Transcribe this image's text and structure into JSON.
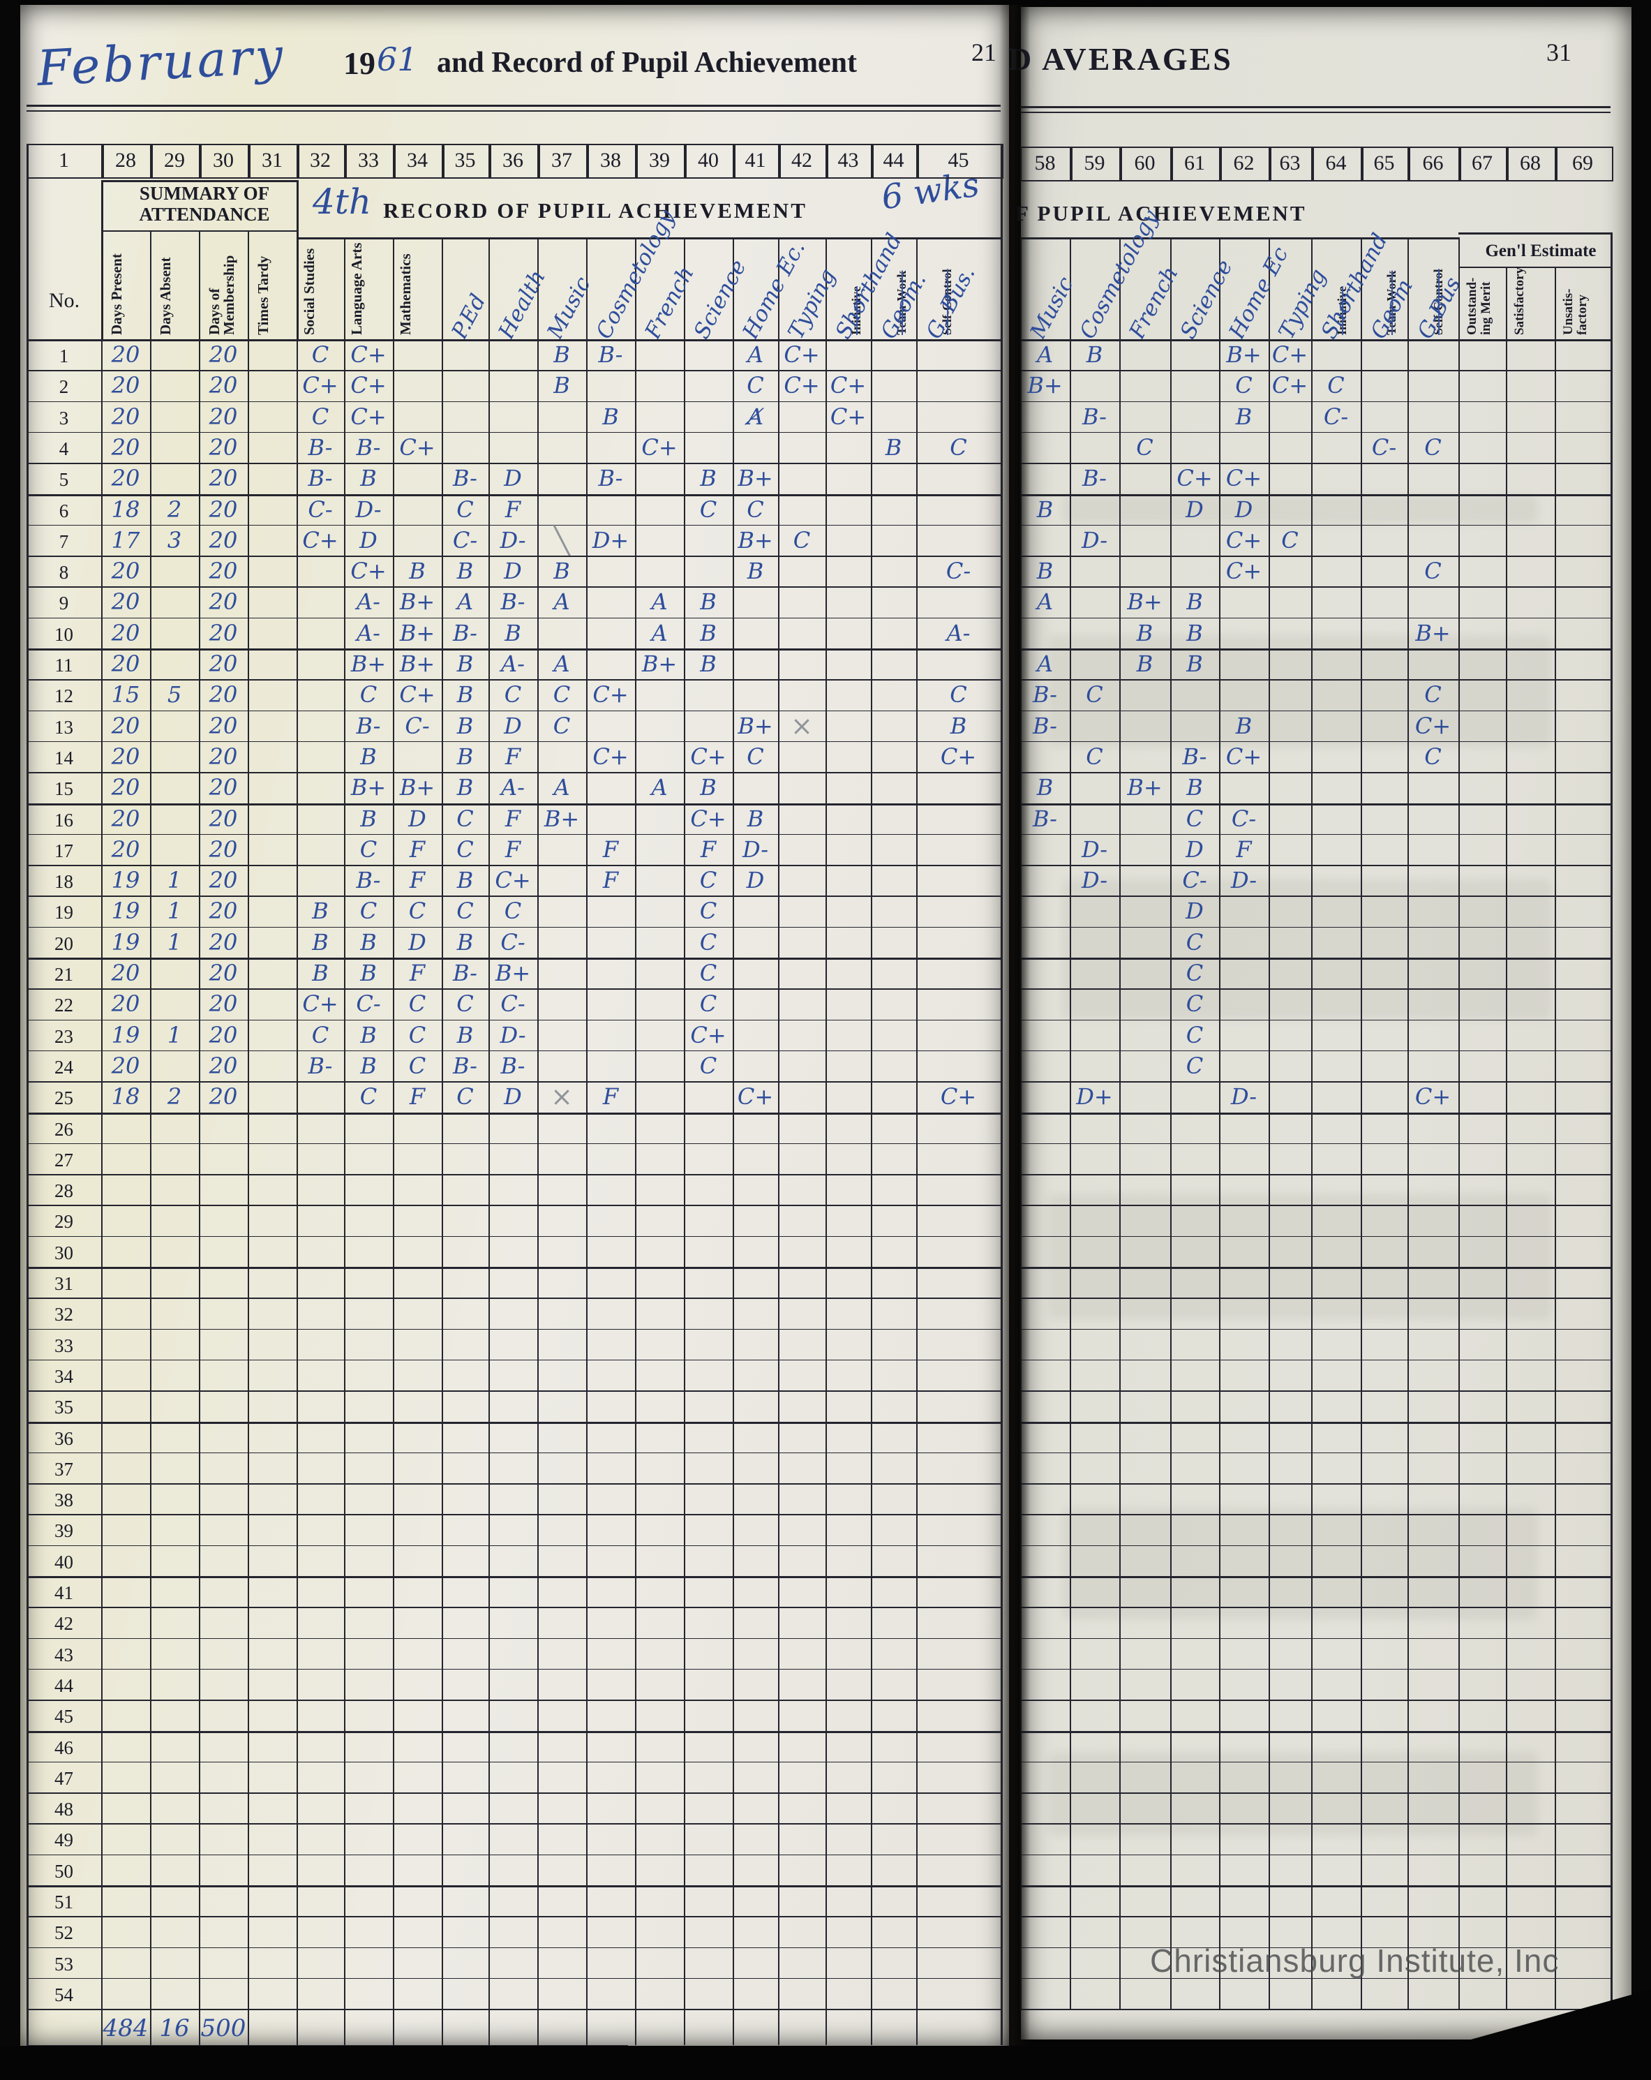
{
  "page_left": {
    "page_number": "21",
    "month_written": "February",
    "year_printed": "19",
    "year_written": "61",
    "title": "and Record of Pupil Achievement",
    "col_numbers": [
      "1",
      "28",
      "29",
      "30",
      "31",
      "32",
      "33",
      "34",
      "35",
      "36",
      "37",
      "38",
      "39",
      "40",
      "41",
      "42",
      "43",
      "44",
      "45"
    ],
    "no_label": "No.",
    "attendance_header": "SUMMARY OF ATTENDANCE",
    "attendance_cols": [
      "Days Present",
      "Days Absent",
      "Days of Membership",
      "Times Tardy"
    ],
    "achievement_header": "RECORD OF PUPIL ACHIEVEMENT",
    "term_annotation": "4th",
    "weeks_annotation": "6 wks",
    "subjects": [
      {
        "label": "Social Studies",
        "style": "printed"
      },
      {
        "label": "Language Arts",
        "style": "printed"
      },
      {
        "label": "Mathematics",
        "style": "printed"
      },
      {
        "label": "P.Ed",
        "style": "written"
      },
      {
        "label": "Health",
        "style": "written"
      },
      {
        "label": "Music",
        "style": "written"
      },
      {
        "label": "Cosmetology",
        "style": "written"
      },
      {
        "label": "French",
        "style": "written"
      },
      {
        "label": "Science",
        "style": "written"
      },
      {
        "label": "Home Ec.",
        "style": "written"
      },
      {
        "label": "Typing",
        "style": "written"
      },
      {
        "label": "Shorthand",
        "style": "written",
        "replaces": "Initiative"
      },
      {
        "label": "Geom.",
        "style": "written",
        "replaces": "Team-Work"
      },
      {
        "label": "G. Bus.",
        "style": "written",
        "replaces": "Self-Control"
      }
    ],
    "totals": {
      "present": "484",
      "absent": "16",
      "membership": "500"
    }
  },
  "page_right": {
    "page_number": "31",
    "title_partial": "D AVERAGES",
    "col_numbers": [
      "58",
      "59",
      "60",
      "61",
      "62",
      "63",
      "64",
      "65",
      "66",
      "67",
      "68",
      "69"
    ],
    "achievement_header_partial": "F PUPIL ACHIEVEMENT",
    "subjects": [
      {
        "label": "Music",
        "style": "written"
      },
      {
        "label": "Cosmetology",
        "style": "written"
      },
      {
        "label": "French",
        "style": "written"
      },
      {
        "label": "Science",
        "style": "written"
      },
      {
        "label": "Home Ec",
        "style": "written"
      },
      {
        "label": "Typing",
        "style": "written"
      },
      {
        "label": "Shorthand",
        "style": "written",
        "replaces": "Initiative"
      },
      {
        "label": "Geom",
        "style": "written",
        "replaces": "Team-Work"
      },
      {
        "label": "G-Bus",
        "style": "written",
        "replaces": "Self-Control"
      }
    ],
    "general_estimate": {
      "header": "Gen'l Estimate",
      "cols": [
        "Outstand- ing Merit",
        "Satisfactory",
        "Unsatis- factory"
      ]
    }
  },
  "watermark": "Christiansburg Institute, Inc",
  "row_count": 54,
  "rows": [
    {
      "no": "1",
      "att": [
        "20",
        "",
        "20",
        ""
      ],
      "left": [
        "C",
        "C+",
        "",
        "",
        "",
        "B",
        "B-",
        "",
        "",
        "A",
        "C+",
        "",
        "",
        ""
      ],
      "right": [
        "A",
        "B",
        "",
        "",
        "B+",
        "C+",
        "",
        "",
        "",
        "",
        "",
        ""
      ]
    },
    {
      "no": "2",
      "att": [
        "20",
        "",
        "20",
        ""
      ],
      "left": [
        "C+",
        "C+",
        "",
        "",
        "",
        "B",
        "",
        "",
        "",
        "C",
        "C+",
        "C+",
        "",
        ""
      ],
      "right": [
        "B+",
        "",
        "",
        "",
        "C",
        "C+",
        "C",
        "",
        "",
        "",
        "",
        ""
      ]
    },
    {
      "no": "3",
      "att": [
        "20",
        "",
        "20",
        ""
      ],
      "left": [
        "C",
        "C+",
        "",
        "",
        "",
        "",
        "B",
        "",
        "",
        "A̸",
        "",
        "C+",
        "",
        ""
      ],
      "right": [
        "",
        "B-",
        "",
        "",
        "B",
        "",
        "C-",
        "",
        "",
        "",
        "",
        ""
      ]
    },
    {
      "no": "4",
      "att": [
        "20",
        "",
        "20",
        ""
      ],
      "left": [
        "B-",
        "B-",
        "C+",
        "",
        "",
        "",
        "",
        "C+",
        "",
        "",
        "",
        "",
        "B",
        "C"
      ],
      "right": [
        "",
        "",
        "C",
        "",
        "",
        "",
        "",
        "C-",
        "C",
        "",
        "",
        ""
      ]
    },
    {
      "no": "5",
      "att": [
        "20",
        "",
        "20",
        ""
      ],
      "left": [
        "B-",
        "B",
        "",
        "B-",
        "D",
        "",
        "B-",
        "",
        "B",
        "B+",
        "",
        "",
        "",
        ""
      ],
      "right": [
        "",
        "B-",
        "",
        "C+",
        "C+",
        "",
        "",
        "",
        "",
        "",
        "",
        ""
      ]
    },
    {
      "no": "6",
      "att": [
        "18",
        "2",
        "20",
        ""
      ],
      "left": [
        "C-",
        "D-",
        "",
        "C",
        "F",
        "",
        "",
        "",
        "C",
        "C",
        "",
        "",
        "",
        ""
      ],
      "right": [
        "B",
        "",
        "",
        "D",
        "D",
        "",
        "",
        "",
        "",
        "",
        "",
        ""
      ]
    },
    {
      "no": "7",
      "att": [
        "17",
        "3",
        "20",
        ""
      ],
      "left": [
        "C+",
        "D",
        "",
        "C-",
        "D-",
        "",
        "D+",
        "",
        "",
        "B+",
        "C",
        "",
        "",
        ""
      ],
      "right": [
        "",
        "D-",
        "",
        "",
        "C+",
        "C",
        "",
        "",
        "",
        "",
        "",
        ""
      ]
    },
    {
      "no": "8",
      "att": [
        "20",
        "",
        "20",
        ""
      ],
      "left": [
        "",
        "C+",
        "B",
        "B",
        "D",
        "B",
        "",
        "",
        "",
        "B",
        "",
        "",
        "",
        "C-"
      ],
      "right": [
        "B",
        "",
        "",
        "",
        "C+",
        "",
        "",
        "",
        "C",
        "",
        "",
        ""
      ]
    },
    {
      "no": "9",
      "att": [
        "20",
        "",
        "20",
        ""
      ],
      "left": [
        "",
        "A-",
        "B+",
        "A",
        "B-",
        "A",
        "",
        "A",
        "B",
        "",
        "",
        "",
        "",
        ""
      ],
      "right": [
        "A",
        "",
        "B+",
        "B",
        "",
        "",
        "",
        "",
        "",
        "",
        "",
        ""
      ]
    },
    {
      "no": "10",
      "att": [
        "20",
        "",
        "20",
        ""
      ],
      "left": [
        "",
        "A-",
        "B+",
        "B-",
        "B",
        "",
        "",
        "A",
        "B",
        "",
        "",
        "",
        "",
        "A-"
      ],
      "right": [
        "",
        "",
        "B",
        "B",
        "",
        "",
        "",
        "",
        "B+",
        "",
        "",
        ""
      ]
    },
    {
      "no": "11",
      "att": [
        "20",
        "",
        "20",
        ""
      ],
      "left": [
        "",
        "B+",
        "B+",
        "B",
        "A-",
        "A",
        "",
        "B+",
        "B",
        "",
        "",
        "",
        "",
        ""
      ],
      "right": [
        "A",
        "",
        "B",
        "B",
        "",
        "",
        "",
        "",
        "",
        "",
        "",
        ""
      ]
    },
    {
      "no": "12",
      "att": [
        "15",
        "5",
        "20",
        ""
      ],
      "left": [
        "",
        "C",
        "C+",
        "B",
        "C",
        "C",
        "C+",
        "",
        "",
        "",
        "",
        "",
        "",
        "C"
      ],
      "right": [
        "B-",
        "C",
        "",
        "",
        "",
        "",
        "",
        "",
        "C",
        "",
        "",
        ""
      ]
    },
    {
      "no": "13",
      "att": [
        "20",
        "",
        "20",
        ""
      ],
      "left": [
        "",
        "B-",
        "C-",
        "B",
        "D",
        "C",
        "",
        "",
        "",
        "B+",
        "",
        "",
        "",
        "B"
      ],
      "right": [
        "B-",
        "",
        "",
        "",
        "B",
        "",
        "",
        "",
        "C+",
        "",
        "",
        ""
      ]
    },
    {
      "no": "14",
      "att": [
        "20",
        "",
        "20",
        ""
      ],
      "left": [
        "",
        "B",
        "",
        "B",
        "F",
        "",
        "C+",
        "",
        "C+",
        "C",
        "",
        "",
        "",
        "C+"
      ],
      "right": [
        "",
        "C",
        "",
        "B-",
        "C+",
        "",
        "",
        "",
        "C",
        "",
        "",
        ""
      ]
    },
    {
      "no": "15",
      "att": [
        "20",
        "",
        "20",
        ""
      ],
      "left": [
        "",
        "B+",
        "B+",
        "B",
        "A-",
        "A",
        "",
        "A",
        "B",
        "",
        "",
        "",
        "",
        ""
      ],
      "right": [
        "B",
        "",
        "B+",
        "B",
        "",
        "",
        "",
        "",
        "",
        "",
        "",
        ""
      ]
    },
    {
      "no": "16",
      "att": [
        "20",
        "",
        "20",
        ""
      ],
      "left": [
        "",
        "B",
        "D",
        "C",
        "F",
        "B+",
        "",
        "",
        "C+",
        "B",
        "",
        "",
        "",
        ""
      ],
      "right": [
        "B-",
        "",
        "",
        "C",
        "C-",
        "",
        "",
        "",
        "",
        "",
        "",
        ""
      ]
    },
    {
      "no": "17",
      "att": [
        "20",
        "",
        "20",
        ""
      ],
      "left": [
        "",
        "C",
        "F",
        "C",
        "F",
        "",
        "F",
        "",
        "F",
        "D-",
        "",
        "",
        "",
        ""
      ],
      "right": [
        "",
        "D-",
        "",
        "D",
        "F",
        "",
        "",
        "",
        "",
        "",
        "",
        ""
      ]
    },
    {
      "no": "18",
      "att": [
        "19",
        "1",
        "20",
        ""
      ],
      "left": [
        "",
        "B-",
        "F",
        "B",
        "C+",
        "",
        "F",
        "",
        "C",
        "D",
        "",
        "",
        "",
        ""
      ],
      "right": [
        "",
        "D-",
        "",
        "C-",
        "D-",
        "",
        "",
        "",
        "",
        "",
        "",
        ""
      ]
    },
    {
      "no": "19",
      "att": [
        "19",
        "1",
        "20",
        ""
      ],
      "left": [
        "B",
        "C",
        "C",
        "C",
        "C",
        "",
        "",
        "",
        "C",
        "",
        "",
        "",
        "",
        ""
      ],
      "right": [
        "",
        "",
        "",
        "D",
        "",
        "",
        "",
        "",
        "",
        "",
        "",
        ""
      ]
    },
    {
      "no": "20",
      "att": [
        "19",
        "1",
        "20",
        ""
      ],
      "left": [
        "B",
        "B",
        "D",
        "B",
        "C-",
        "",
        "",
        "",
        "C",
        "",
        "",
        "",
        "",
        ""
      ],
      "right": [
        "",
        "",
        "",
        "C",
        "",
        "",
        "",
        "",
        "",
        "",
        "",
        ""
      ]
    },
    {
      "no": "21",
      "att": [
        "20",
        "",
        "20",
        ""
      ],
      "left": [
        "B",
        "B",
        "F",
        "B-",
        "B+",
        "",
        "",
        "",
        "C",
        "",
        "",
        "",
        "",
        ""
      ],
      "right": [
        "",
        "",
        "",
        "C",
        "",
        "",
        "",
        "",
        "",
        "",
        "",
        ""
      ]
    },
    {
      "no": "22",
      "att": [
        "20",
        "",
        "20",
        ""
      ],
      "left": [
        "C+",
        "C-",
        "C",
        "C",
        "C-",
        "",
        "",
        "",
        "C",
        "",
        "",
        "",
        "",
        ""
      ],
      "right": [
        "",
        "",
        "",
        "C",
        "",
        "",
        "",
        "",
        "",
        "",
        "",
        ""
      ]
    },
    {
      "no": "23",
      "att": [
        "19",
        "1",
        "20",
        ""
      ],
      "left": [
        "C",
        "B",
        "C",
        "B",
        "D-",
        "",
        "",
        "",
        "C+",
        "",
        "",
        "",
        "",
        ""
      ],
      "right": [
        "",
        "",
        "",
        "C",
        "",
        "",
        "",
        "",
        "",
        "",
        "",
        ""
      ]
    },
    {
      "no": "24",
      "att": [
        "20",
        "",
        "20",
        ""
      ],
      "left": [
        "B-",
        "B",
        "C",
        "B-",
        "B-",
        "",
        "",
        "",
        "C",
        "",
        "",
        "",
        "",
        ""
      ],
      "right": [
        "",
        "",
        "",
        "C",
        "",
        "",
        "",
        "",
        "",
        "",
        "",
        ""
      ]
    },
    {
      "no": "25",
      "att": [
        "18",
        "2",
        "20",
        ""
      ],
      "left": [
        "",
        "C",
        "F",
        "C",
        "D",
        "",
        "F",
        "",
        "",
        "C+",
        "",
        "",
        "",
        "C+"
      ],
      "right": [
        "",
        "D+",
        "",
        "",
        "D-",
        "",
        "",
        "",
        "C+",
        "",
        "",
        ""
      ]
    }
  ],
  "pencil_marks": [
    {
      "page": "left",
      "row": 7,
      "col": 5,
      "glyph": "╲"
    },
    {
      "page": "left",
      "row": 13,
      "col": 10,
      "glyph": "×"
    },
    {
      "page": "left",
      "row": 25,
      "col": 5,
      "glyph": "×"
    }
  ]
}
